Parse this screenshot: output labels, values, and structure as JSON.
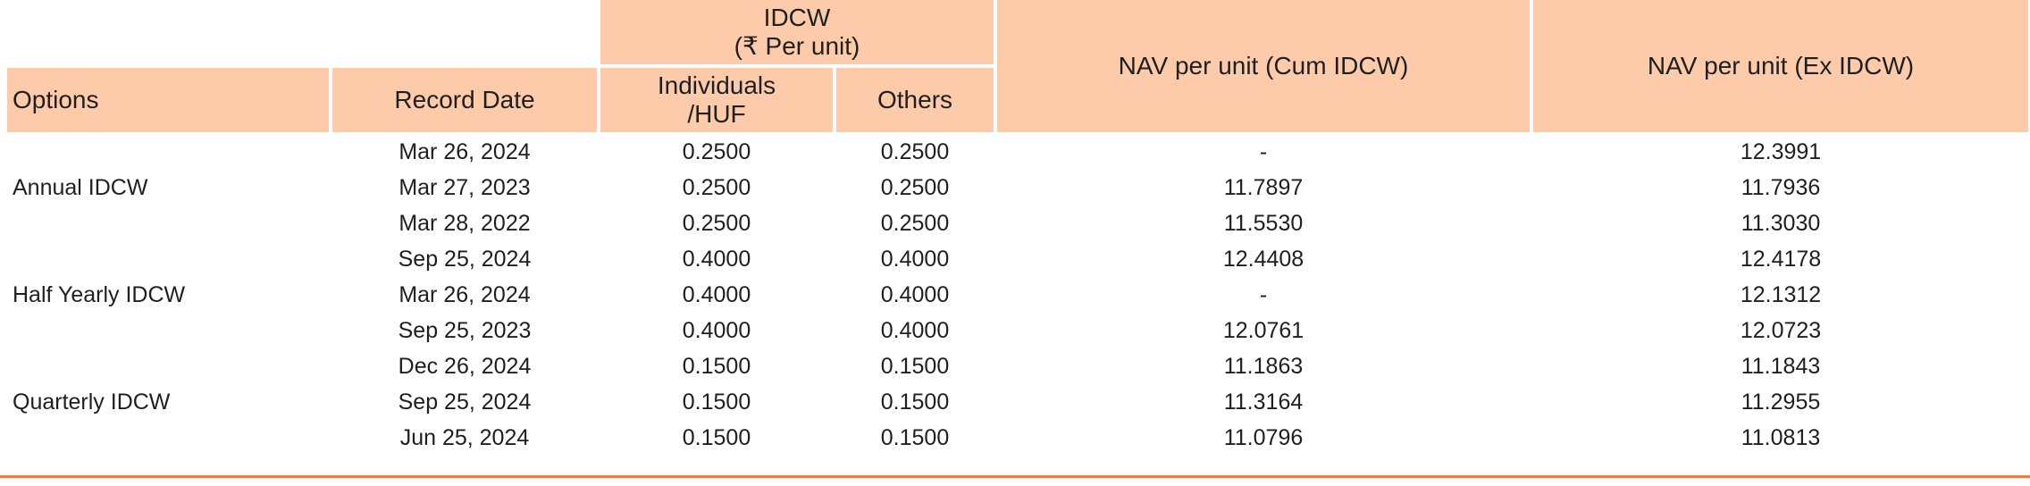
{
  "colors": {
    "header_bg": "#fdcbaa",
    "bottom_rule": "#ef7a45"
  },
  "header": {
    "idcw_group_line1": "IDCW",
    "idcw_group_line2": "(₹ Per unit)",
    "options": "Options",
    "record_date": "Record Date",
    "individuals_line1": "Individuals",
    "individuals_line2": "/HUF",
    "others": "Others",
    "nav_cum": "NAV per unit (Cum IDCW)",
    "nav_ex": "NAV per unit (Ex IDCW)"
  },
  "groups": [
    {
      "option": "Annual IDCW",
      "rows": [
        {
          "record_date": "Mar 26, 2024",
          "individuals": "0.2500",
          "others": "0.2500",
          "nav_cum": "-",
          "nav_ex": "12.3991"
        },
        {
          "record_date": "Mar 27, 2023",
          "individuals": "0.2500",
          "others": "0.2500",
          "nav_cum": "11.7897",
          "nav_ex": "11.7936"
        },
        {
          "record_date": "Mar 28, 2022",
          "individuals": "0.2500",
          "others": "0.2500",
          "nav_cum": "11.5530",
          "nav_ex": "11.3030"
        }
      ]
    },
    {
      "option": "Half Yearly IDCW",
      "rows": [
        {
          "record_date": "Sep 25, 2024",
          "individuals": "0.4000",
          "others": "0.4000",
          "nav_cum": "12.4408",
          "nav_ex": "12.4178"
        },
        {
          "record_date": "Mar 26, 2024",
          "individuals": "0.4000",
          "others": "0.4000",
          "nav_cum": "-",
          "nav_ex": "12.1312"
        },
        {
          "record_date": "Sep 25, 2023",
          "individuals": "0.4000",
          "others": "0.4000",
          "nav_cum": "12.0761",
          "nav_ex": "12.0723"
        }
      ]
    },
    {
      "option": "Quarterly IDCW",
      "rows": [
        {
          "record_date": "Dec 26, 2024",
          "individuals": "0.1500",
          "others": "0.1500",
          "nav_cum": "11.1863",
          "nav_ex": "11.1843"
        },
        {
          "record_date": "Sep 25, 2024",
          "individuals": "0.1500",
          "others": "0.1500",
          "nav_cum": "11.3164",
          "nav_ex": "11.2955"
        },
        {
          "record_date": "Jun 25, 2024",
          "individuals": "0.1500",
          "others": "0.1500",
          "nav_cum": "11.0796",
          "nav_ex": "11.0813"
        }
      ]
    }
  ]
}
